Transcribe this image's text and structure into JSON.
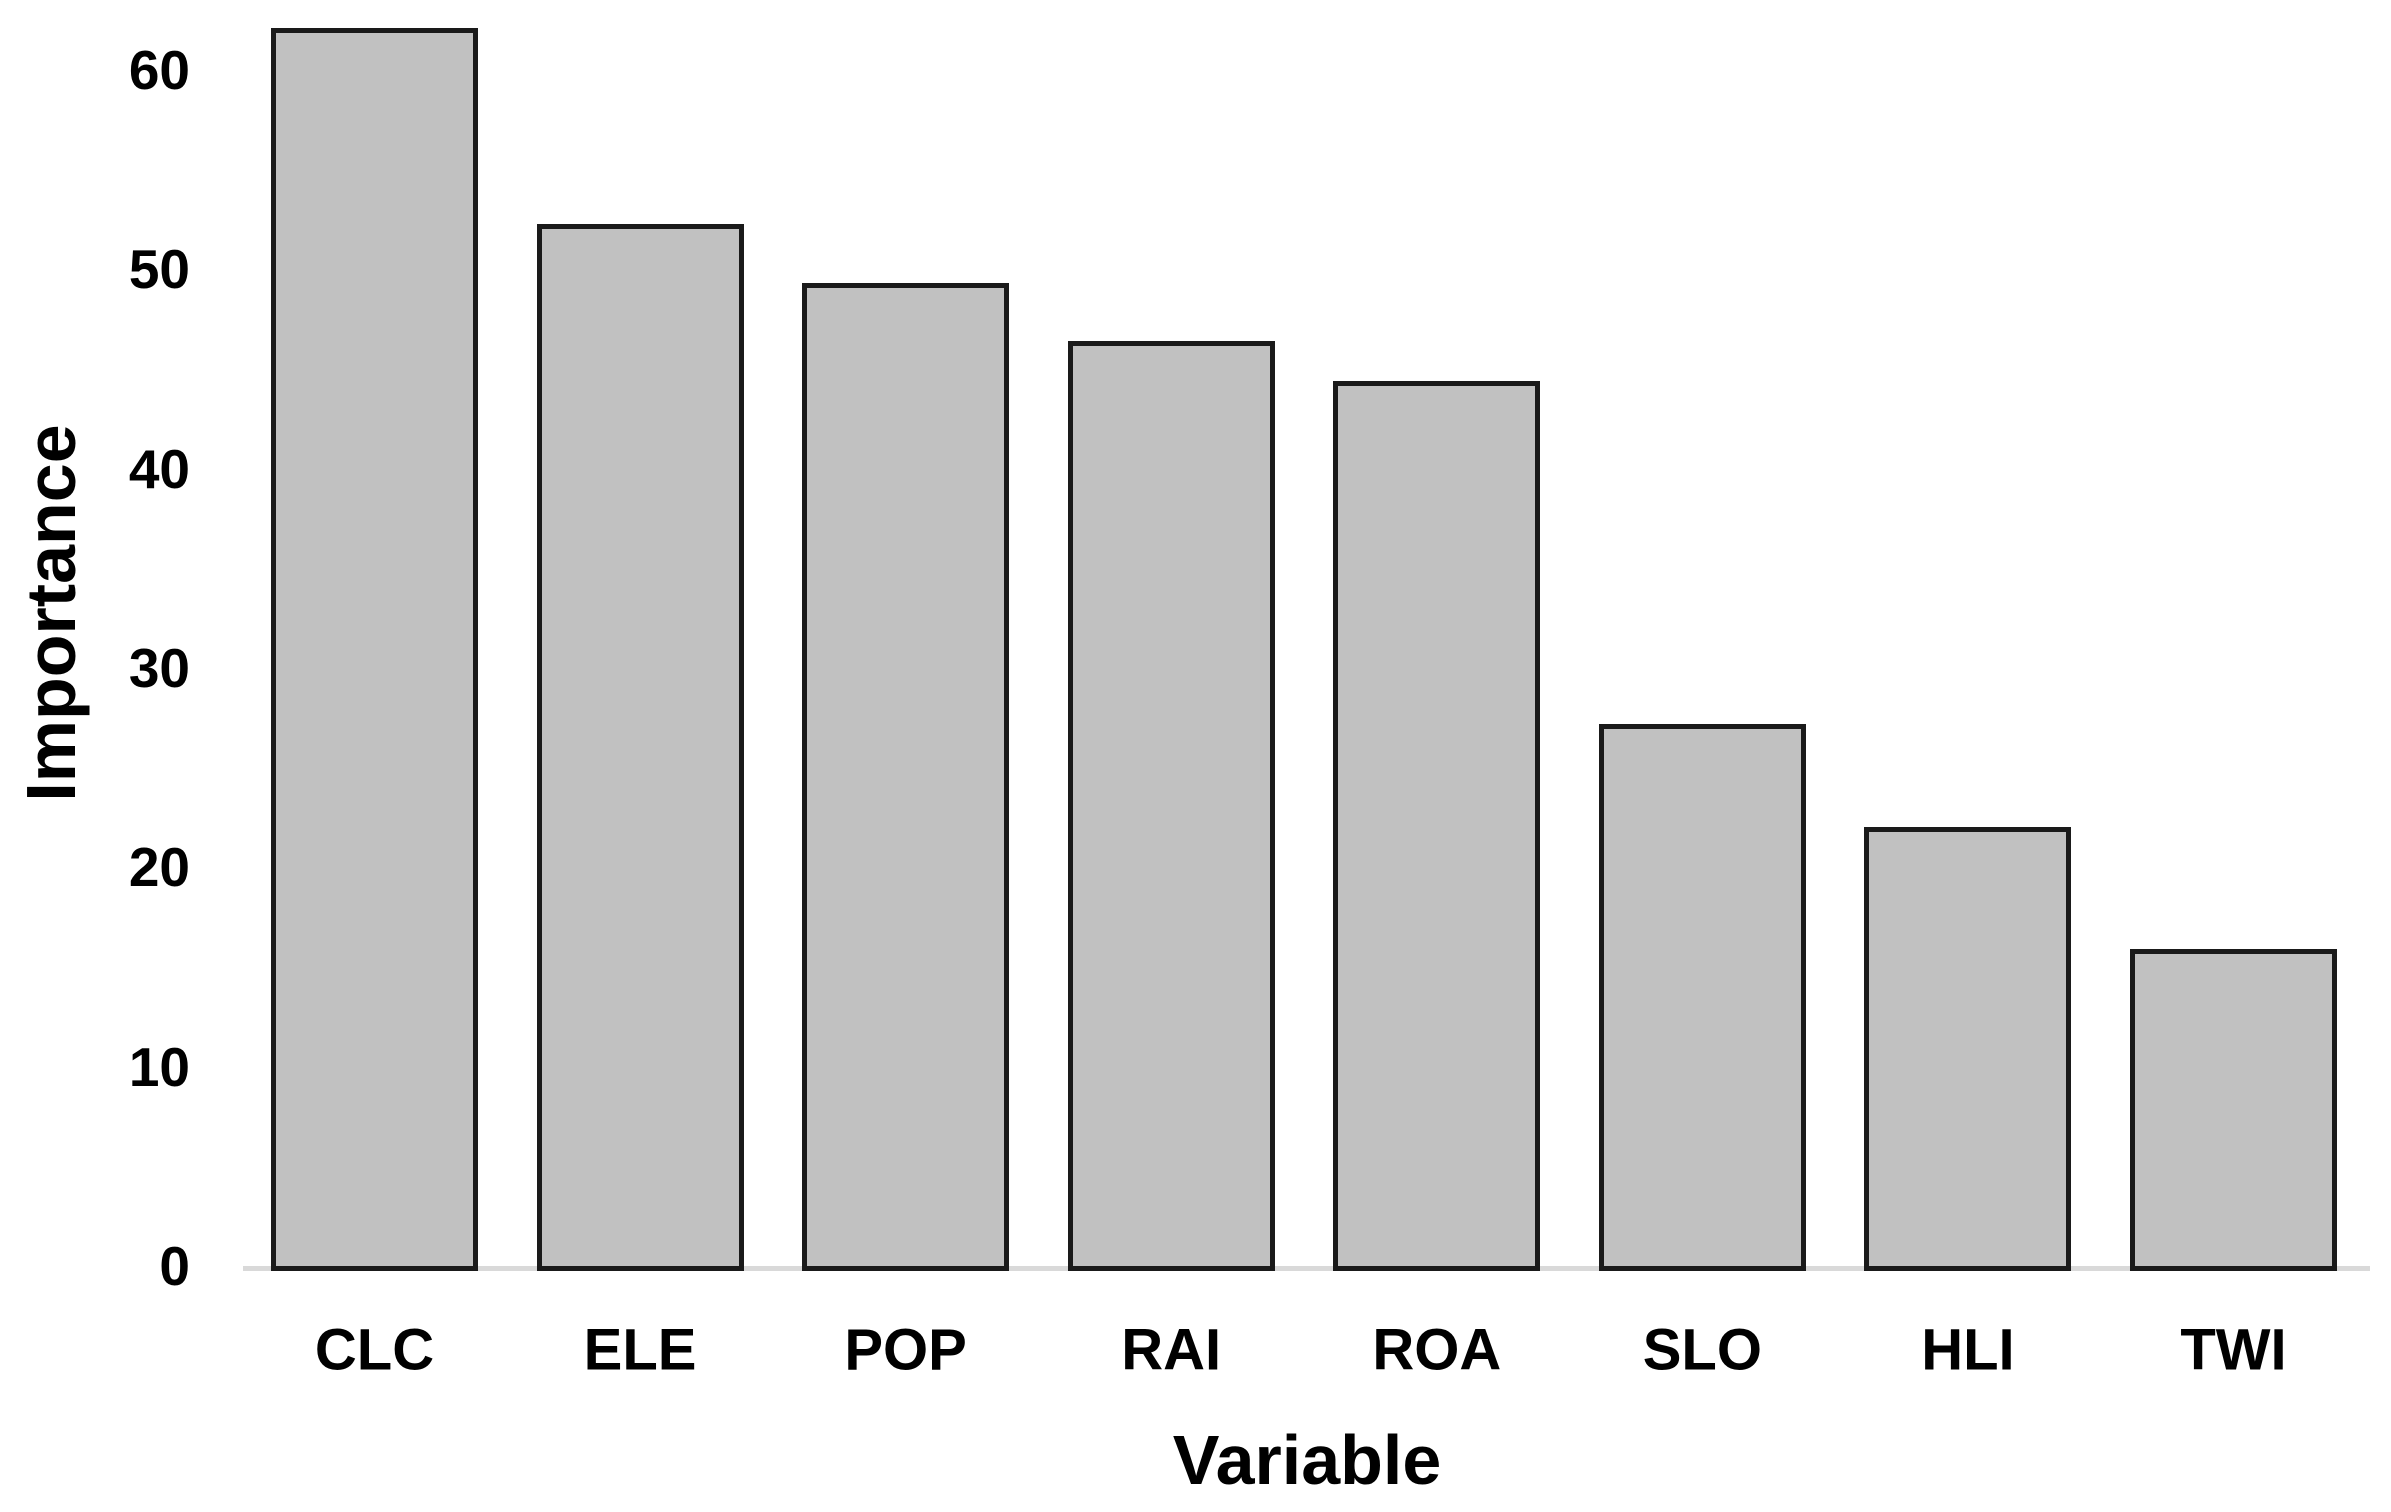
{
  "chart_data": {
    "type": "bar",
    "title": "",
    "categories": [
      "CLC",
      "ELE",
      "POP",
      "RAI",
      "ROA",
      "SLO",
      "HLI",
      "TWI"
    ],
    "values": [
      62.1,
      52.3,
      49.3,
      46.4,
      44.4,
      27.2,
      22.0,
      15.9
    ],
    "xlabel": "Variable",
    "ylabel": "Importance",
    "yticks": [
      0,
      10,
      20,
      30,
      40,
      50,
      60
    ],
    "ylim": [
      0,
      63.5
    ],
    "grid": false,
    "legend": false,
    "colors": {
      "bar_fill": "#c1c1c1",
      "bar_border": "#1a1a1a",
      "axis_line": "#d9d9d9",
      "text": "#000000",
      "background": "#ffffff"
    }
  }
}
